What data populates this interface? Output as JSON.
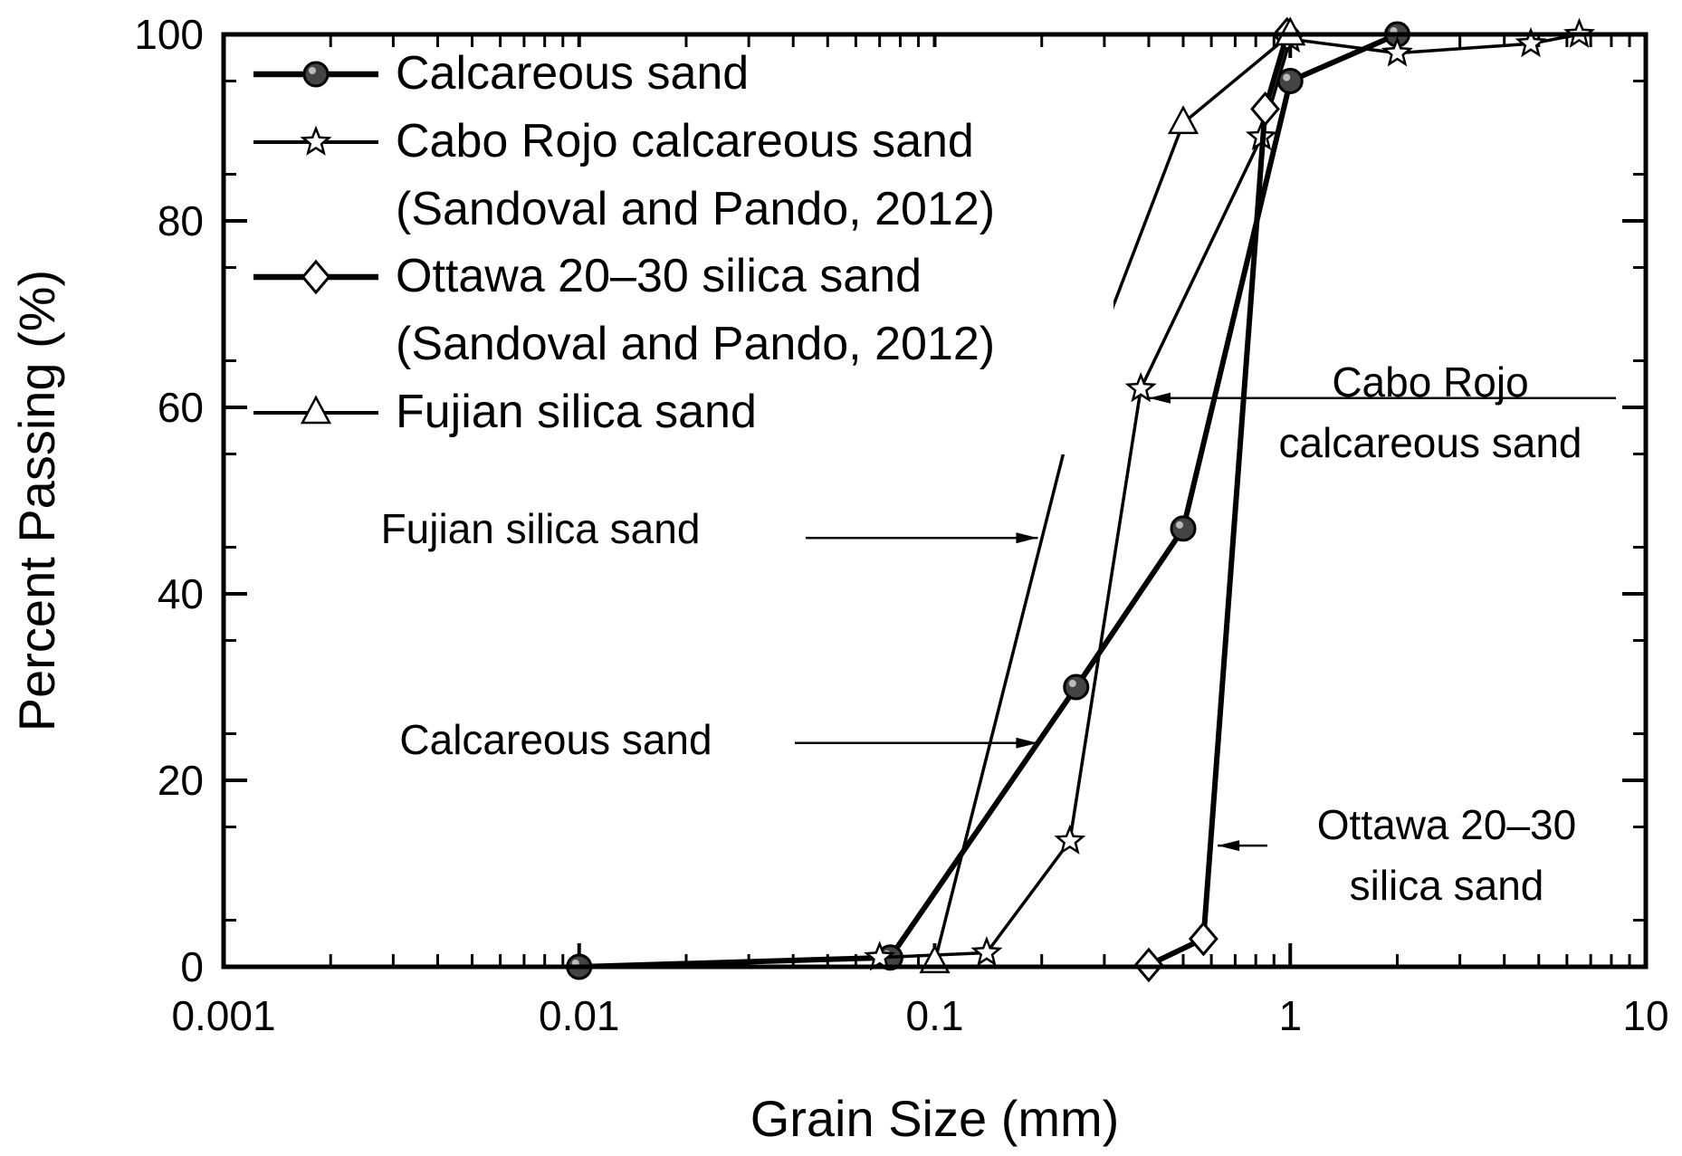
{
  "chart_data": {
    "type": "line",
    "title": "",
    "xlabel": "Grain Size (mm)",
    "ylabel": "Percent Passing (%)",
    "xscale": "log",
    "xlim": [
      0.001,
      10
    ],
    "ylim": [
      0,
      100
    ],
    "grid": false,
    "legend_position": "top-left",
    "x_ticks": [
      {
        "value": 0.001,
        "label": "0.001"
      },
      {
        "value": 0.01,
        "label": "0.01"
      },
      {
        "value": 0.1,
        "label": "0.1"
      },
      {
        "value": 1,
        "label": "1"
      },
      {
        "value": 10,
        "label": "10"
      }
    ],
    "y_ticks": [
      {
        "value": 0,
        "label": "0"
      },
      {
        "value": 20,
        "label": "20"
      },
      {
        "value": 40,
        "label": "40"
      },
      {
        "value": 60,
        "label": "60"
      },
      {
        "value": 80,
        "label": "80"
      },
      {
        "value": 100,
        "label": "100"
      }
    ],
    "series": [
      {
        "name": "Calcareous sand",
        "marker": "circle",
        "line_weight": "thick",
        "color": "#000000",
        "points": [
          {
            "x": 0.01,
            "y": 0
          },
          {
            "x": 0.075,
            "y": 1
          },
          {
            "x": 0.25,
            "y": 30
          },
          {
            "x": 0.5,
            "y": 47
          },
          {
            "x": 1.0,
            "y": 95
          },
          {
            "x": 2.0,
            "y": 100
          }
        ]
      },
      {
        "name": "Cabo Rojo calcareous sand",
        "name_line2": "(Sandoval and Pando, 2012)",
        "marker": "star",
        "line_weight": "thin",
        "color": "#000000",
        "points": [
          {
            "x": 0.07,
            "y": 1
          },
          {
            "x": 0.14,
            "y": 1.5
          },
          {
            "x": 0.24,
            "y": 13.5
          },
          {
            "x": 0.38,
            "y": 62
          },
          {
            "x": 0.83,
            "y": 89
          },
          {
            "x": 1.0,
            "y": 99.5
          },
          {
            "x": 2.0,
            "y": 98
          },
          {
            "x": 4.75,
            "y": 99
          },
          {
            "x": 6.5,
            "y": 100
          }
        ]
      },
      {
        "name": "Ottawa 20–30 silica sand",
        "name_line2": "(Sandoval and Pando, 2012)",
        "marker": "diamond",
        "line_weight": "thick",
        "color": "#000000",
        "points": [
          {
            "x": 0.4,
            "y": 0.2
          },
          {
            "x": 0.57,
            "y": 3
          },
          {
            "x": 0.85,
            "y": 92
          },
          {
            "x": 0.98,
            "y": 100
          }
        ]
      },
      {
        "name": "Fujian silica sand",
        "marker": "triangle",
        "line_weight": "thin",
        "color": "#000000",
        "points": [
          {
            "x": 0.1,
            "y": 0.5
          },
          {
            "x": 0.25,
            "y": 60.5
          },
          {
            "x": 0.5,
            "y": 90.5
          },
          {
            "x": 1.0,
            "y": 100
          }
        ]
      }
    ],
    "annotations": [
      {
        "lines": [
          "Cabo Rojo",
          "calcareous sand"
        ],
        "target": {
          "x": 0.4,
          "y": 61
        }
      },
      {
        "lines": [
          "Fujian silica sand"
        ],
        "target": {
          "x": 0.195,
          "y": 46
        }
      },
      {
        "lines": [
          "Calcareous sand"
        ],
        "target": {
          "x": 0.195,
          "y": 24
        }
      },
      {
        "lines": [
          "Ottawa 20–30",
          "silica sand"
        ],
        "target": {
          "x": 0.625,
          "y": 13
        }
      }
    ]
  }
}
